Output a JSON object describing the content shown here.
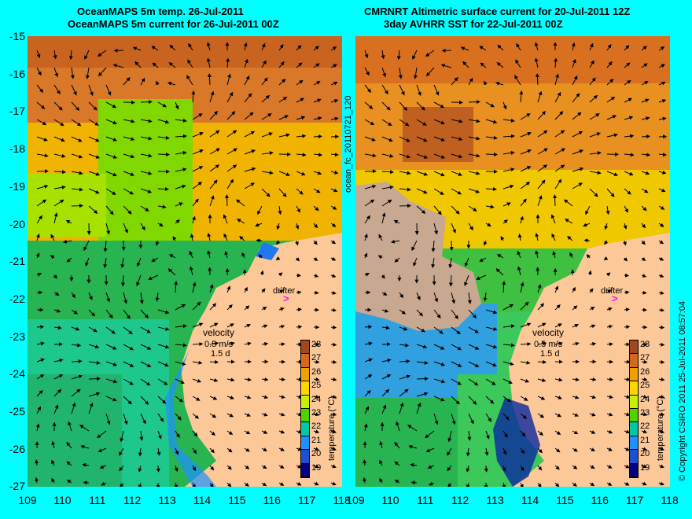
{
  "left_panel": {
    "title_line1": "OceanMAPS 5m temp. 26-Jul-2011",
    "title_line2": "OceanMAPS 5m current for 26-Jul-2011 00Z"
  },
  "right_panel": {
    "title_line1": "CMRNRT Altimetric surface current for 20-Jul-2011 12Z",
    "title_line2": "3day AVHRR SST for 22-Jul-2011 00Z"
  },
  "side_label": "ocean_fc_20110721_120",
  "copyright": "© Copyright CSIRO 2011   25-Jul-2011 08:57:04",
  "drifter_label": "drifter",
  "velocity": {
    "label": "velocity",
    "speed": "0.5 m/s",
    "duration": "1.5 d"
  },
  "colorbar": {
    "label": "temperature (°C)",
    "ticks": [
      "28",
      "27",
      "26",
      "25",
      "24",
      "23",
      "22",
      "21",
      "20",
      "19"
    ],
    "colors": [
      "#a0481e",
      "#d2691e",
      "#f0a000",
      "#ffd700",
      "#c8f000",
      "#50d200",
      "#00c8a0",
      "#1e90ff",
      "#1e50d2",
      "#000080"
    ]
  },
  "axes": {
    "y_ticks": [
      "-15",
      "-16",
      "-17",
      "-18",
      "-19",
      "-20",
      "-21",
      "-22",
      "-23",
      "-24",
      "-25",
      "-26",
      "-27"
    ],
    "x_ticks": [
      "109",
      "110",
      "111",
      "112",
      "113",
      "114",
      "115",
      "116",
      "117",
      "118"
    ]
  }
}
